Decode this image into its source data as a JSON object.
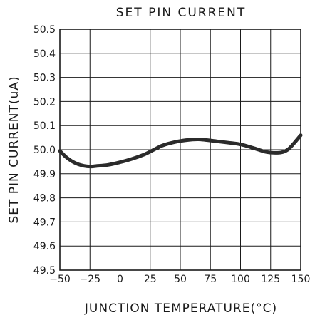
{
  "chart_data": {
    "type": "line",
    "title": "SET PIN CURRENT",
    "xlabel": "JUNCTION TEMPERATURE(°C)",
    "ylabel": "SET PIN CURRENT(uA)",
    "xlim": [
      -50,
      150
    ],
    "ylim": [
      49.5,
      50.5
    ],
    "x_ticks": [
      "−50",
      "−25",
      "0",
      "25",
      "50",
      "75",
      "100",
      "125",
      "150"
    ],
    "y_ticks": [
      "50.5",
      "50.4",
      "50.3",
      "50.2",
      "50.1",
      "50.0",
      "49.9",
      "49.8",
      "49.7",
      "49.6",
      "49.5"
    ],
    "x_tick_values": [
      -50,
      -25,
      0,
      25,
      50,
      75,
      100,
      125,
      150
    ],
    "y_tick_values": [
      50.5,
      50.4,
      50.3,
      50.2,
      50.1,
      50.0,
      49.9,
      49.8,
      49.7,
      49.6,
      49.5
    ],
    "grid": true,
    "series": [
      {
        "x": [
          -50,
          -45,
          -40,
          -35,
          -30,
          -25,
          -20,
          -10,
          0,
          10,
          20,
          25,
          30,
          35,
          40,
          50,
          60,
          65,
          70,
          80,
          90,
          100,
          110,
          120,
          125,
          130,
          135,
          140,
          145,
          150
        ],
        "y": [
          49.995,
          49.97,
          49.952,
          49.94,
          49.933,
          49.93,
          49.932,
          49.937,
          49.948,
          49.962,
          49.98,
          49.992,
          50.005,
          50.017,
          50.025,
          50.036,
          50.042,
          50.043,
          50.041,
          50.035,
          50.029,
          50.022,
          50.008,
          49.992,
          49.988,
          49.987,
          49.99,
          50.003,
          50.03,
          50.06
        ]
      }
    ]
  }
}
